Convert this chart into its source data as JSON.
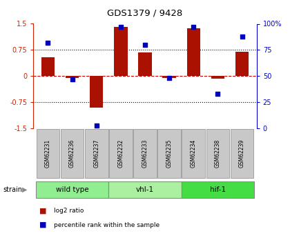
{
  "title": "GDS1379 / 9428",
  "samples": [
    "GSM62231",
    "GSM62236",
    "GSM62237",
    "GSM62232",
    "GSM62233",
    "GSM62235",
    "GSM62234",
    "GSM62238",
    "GSM62239"
  ],
  "log2_ratio": [
    0.55,
    -0.05,
    -0.9,
    1.42,
    0.68,
    -0.05,
    1.38,
    -0.08,
    0.7
  ],
  "percentile_rank": [
    82,
    47,
    3,
    97,
    80,
    48,
    97,
    33,
    88
  ],
  "groups": [
    {
      "label": "wild type",
      "start": 0,
      "end": 3,
      "color": "#90ee90"
    },
    {
      "label": "vhl-1",
      "start": 3,
      "end": 6,
      "color": "#aaf0a0"
    },
    {
      "label": "hif-1",
      "start": 6,
      "end": 9,
      "color": "#44dd44"
    }
  ],
  "ylim_left": [
    -1.5,
    1.5
  ],
  "ylim_right": [
    0,
    100
  ],
  "yticks_left": [
    -1.5,
    -0.75,
    0,
    0.75,
    1.5
  ],
  "ytick_labels_left": [
    "-1.5",
    "-0.75",
    "0",
    "0.75",
    "1.5"
  ],
  "yticks_right": [
    0,
    25,
    50,
    75,
    100
  ],
  "ytick_labels_right": [
    "0",
    "25",
    "50",
    "75",
    "100%"
  ],
  "bar_color": "#aa1100",
  "dot_color": "#0000bb",
  "zero_line_color": "#cc0000",
  "label_color_left": "#cc2200",
  "label_color_right": "#0000cc",
  "bar_width": 0.55
}
